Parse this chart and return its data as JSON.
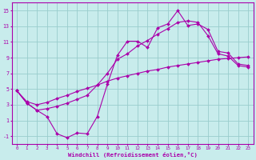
{
  "xlabel": "Windchill (Refroidissement éolien,°C)",
  "background_color": "#c8ecec",
  "line_color": "#aa00aa",
  "grid_color": "#99cccc",
  "xlim": [
    -0.5,
    23.5
  ],
  "ylim": [
    -2,
    16
  ],
  "xticks": [
    0,
    1,
    2,
    3,
    4,
    5,
    6,
    7,
    8,
    9,
    10,
    11,
    12,
    13,
    14,
    15,
    16,
    17,
    18,
    19,
    20,
    21,
    22,
    23
  ],
  "yticks": [
    -1,
    1,
    3,
    5,
    7,
    9,
    11,
    13,
    15
  ],
  "line1_x": [
    0,
    1,
    2,
    3,
    4,
    5,
    6,
    7,
    8,
    9,
    10,
    11,
    12,
    13,
    14,
    15,
    16,
    17,
    18,
    19,
    20,
    21,
    22,
    23
  ],
  "line1_y": [
    4.8,
    3.2,
    2.3,
    1.5,
    -0.7,
    -1.2,
    -0.6,
    -0.7,
    1.5,
    5.6,
    9.3,
    11.1,
    11.1,
    10.3,
    12.8,
    13.3,
    15.0,
    13.1,
    13.3,
    12.6,
    9.8,
    9.6,
    8.2,
    8.0
  ],
  "line2_x": [
    0,
    1,
    2,
    3,
    4,
    5,
    6,
    7,
    8,
    9,
    10,
    11,
    12,
    13,
    14,
    15,
    16,
    17,
    18,
    19,
    20,
    21,
    22,
    23
  ],
  "line2_y": [
    4.8,
    3.4,
    3.0,
    3.3,
    3.8,
    4.2,
    4.7,
    5.1,
    5.5,
    6.0,
    6.4,
    6.7,
    7.0,
    7.3,
    7.5,
    7.8,
    8.0,
    8.2,
    8.4,
    8.6,
    8.8,
    8.9,
    9.0,
    9.1
  ],
  "line3_x": [
    0,
    1,
    2,
    3,
    4,
    5,
    6,
    7,
    8,
    9,
    10,
    11,
    12,
    13,
    14,
    15,
    16,
    17,
    18,
    19,
    20,
    21,
    22,
    23
  ],
  "line3_y": [
    4.8,
    3.2,
    2.3,
    2.5,
    2.8,
    3.2,
    3.7,
    4.2,
    5.5,
    7.0,
    8.8,
    9.5,
    10.5,
    11.2,
    12.0,
    12.7,
    13.5,
    13.7,
    13.5,
    11.8,
    9.5,
    9.2,
    8.0,
    7.8
  ]
}
